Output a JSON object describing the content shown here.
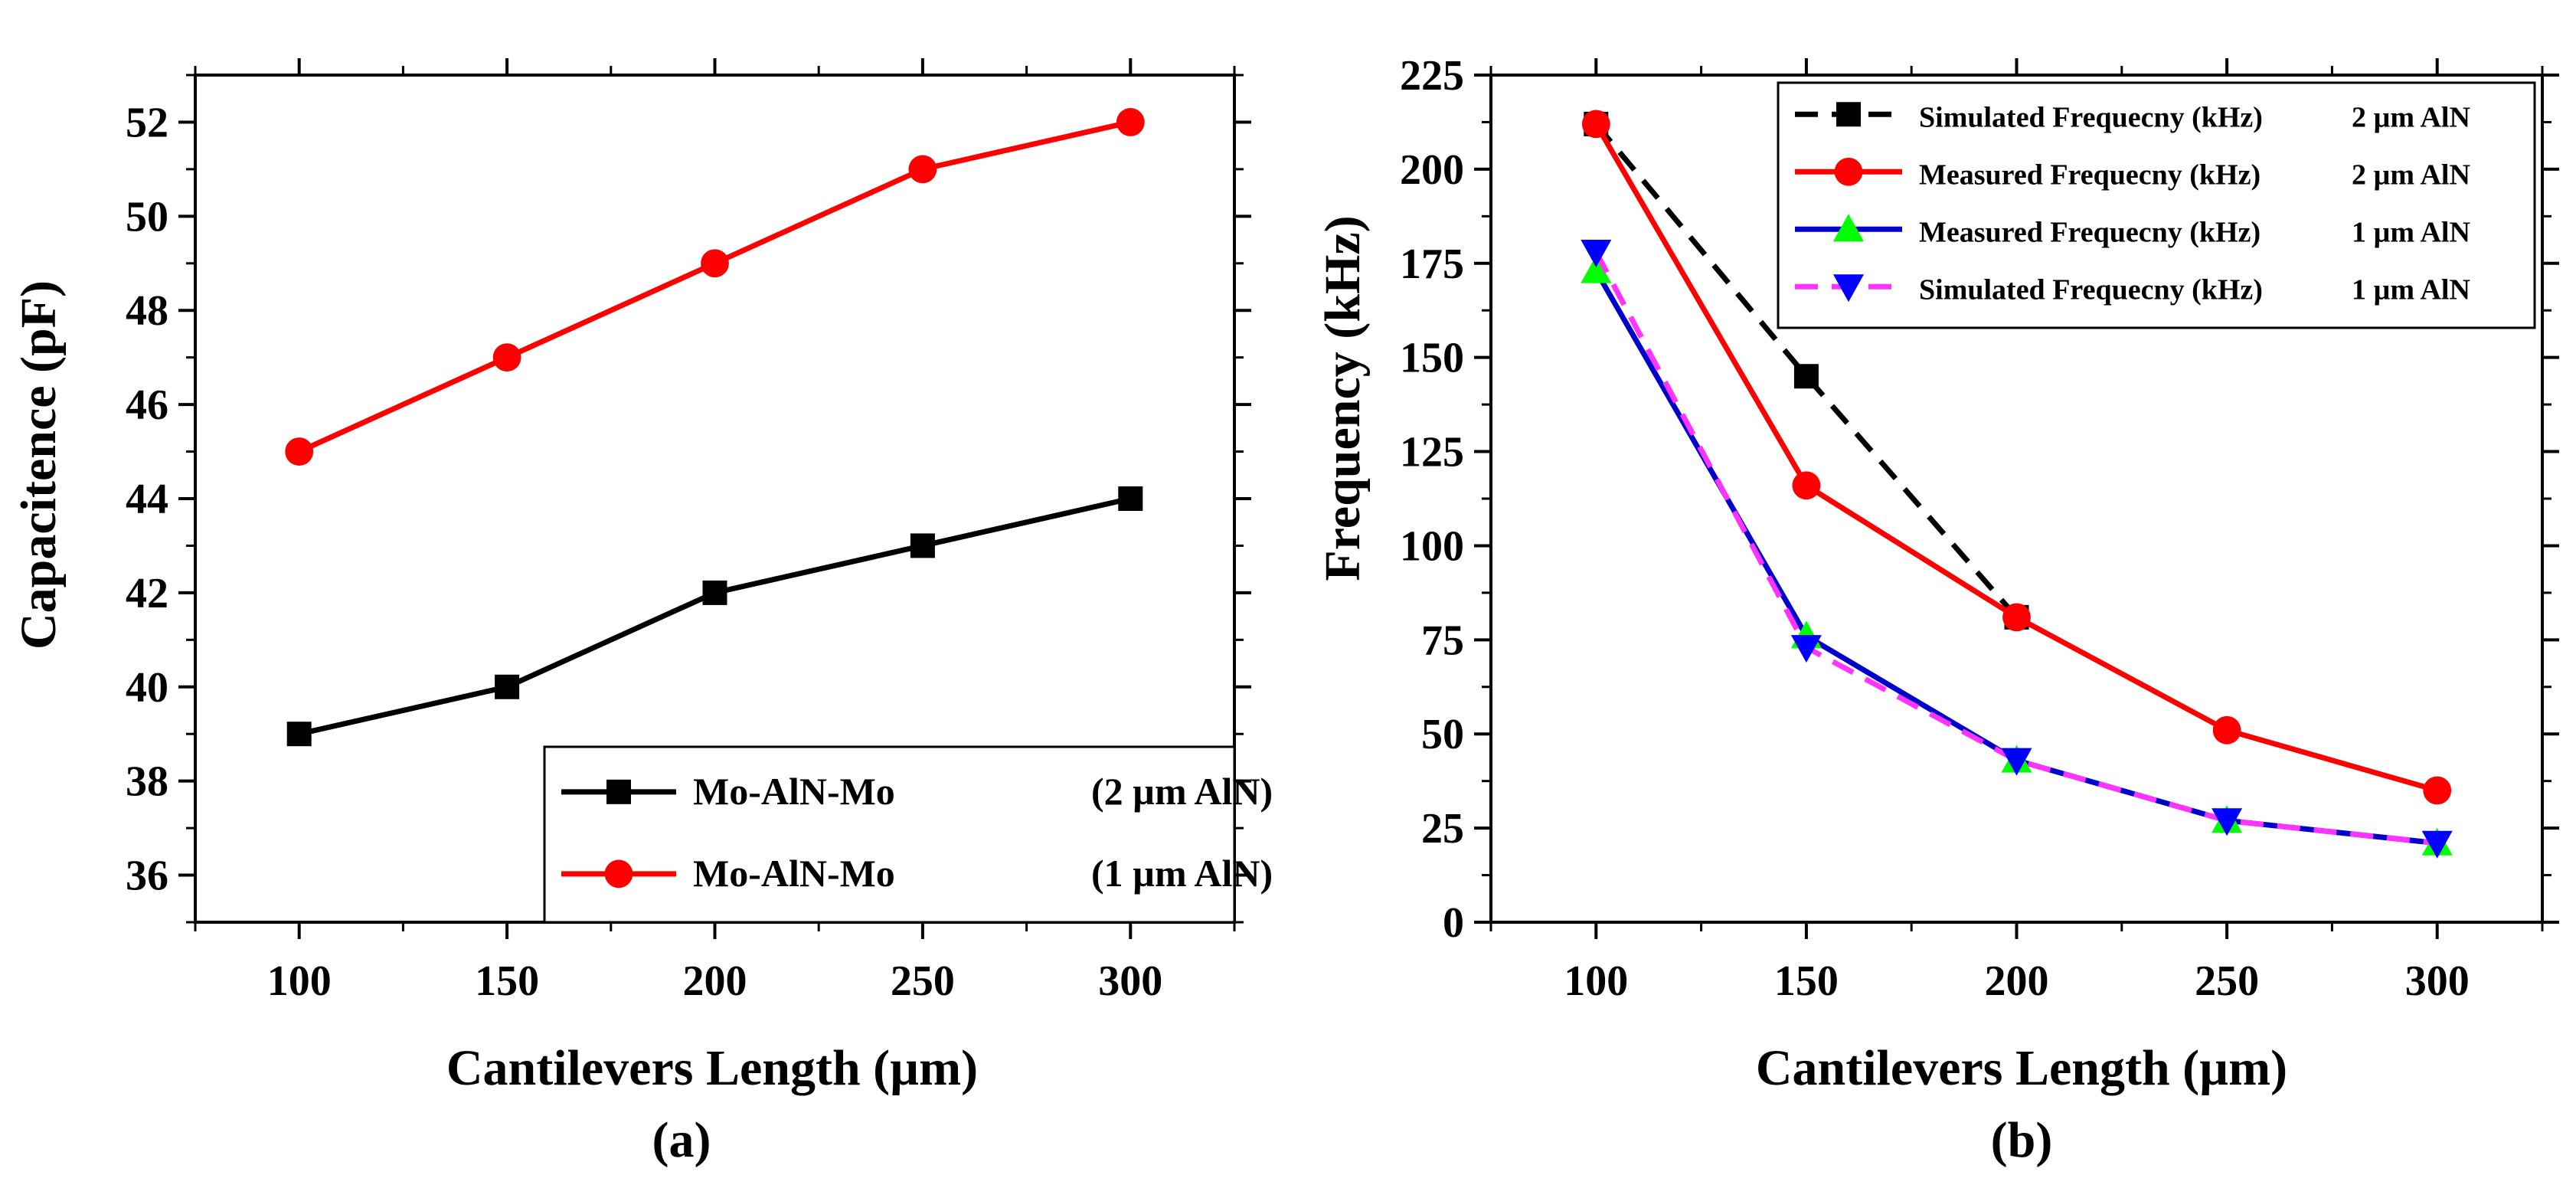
{
  "chart_data": [
    {
      "type": "line",
      "panel_label": "(a)",
      "xlabel": "Cantilevers Length (µm)",
      "ylabel": "Capacitence (pF)",
      "xlim": [
        75,
        325
      ],
      "ylim": [
        35,
        53
      ],
      "x_ticks": [
        100,
        150,
        200,
        250,
        300
      ],
      "y_ticks": [
        36,
        38,
        40,
        42,
        44,
        46,
        48,
        50,
        52
      ],
      "x_tick_labels": [
        "100",
        "150",
        "200",
        "250",
        "300"
      ],
      "y_tick_labels": [
        "36",
        "38",
        "40",
        "42",
        "44",
        "46",
        "48",
        "50",
        "52"
      ],
      "legend_position": "bottom-right",
      "series": [
        {
          "name": "Mo-AlN-Mo",
          "legend_note": "(2 µm AlN)",
          "color": "#000000",
          "marker": "square",
          "dash": "solid",
          "x": [
            100,
            150,
            200,
            250,
            300
          ],
          "values": [
            39,
            40,
            42,
            43,
            44
          ]
        },
        {
          "name": "Mo-AlN-Mo",
          "legend_note": "(1 µm AlN)",
          "color": "#ff0000",
          "marker": "circle",
          "dash": "solid",
          "x": [
            100,
            150,
            200,
            250,
            300
          ],
          "values": [
            45,
            47,
            49,
            51,
            52
          ]
        }
      ]
    },
    {
      "type": "line",
      "panel_label": "(b)",
      "xlabel": "Cantilevers Length (µm)",
      "ylabel": "Frequency (kHz)",
      "xlim": [
        75,
        325
      ],
      "ylim": [
        0,
        225
      ],
      "x_ticks": [
        100,
        150,
        200,
        250,
        300
      ],
      "y_ticks": [
        0,
        25,
        50,
        75,
        100,
        125,
        150,
        175,
        200,
        225
      ],
      "x_tick_labels": [
        "100",
        "150",
        "200",
        "250",
        "300"
      ],
      "y_tick_labels": [
        "0",
        "25",
        "50",
        "75",
        "100",
        "125",
        "150",
        "175",
        "200",
        "225"
      ],
      "legend_position": "top-right",
      "series": [
        {
          "name": "Simulated Frequecny (kHz)",
          "legend_note": "2 µm AlN",
          "color": "#000000",
          "marker": "square",
          "dash": "dashed",
          "x": [
            100,
            150,
            200
          ],
          "values": [
            212,
            145,
            81
          ]
        },
        {
          "name": "Measured Frequecny (kHz)",
          "legend_note": "2 µm AlN",
          "color": "#ff0000",
          "marker": "circle",
          "dash": "solid",
          "x": [
            100,
            150,
            200,
            250,
            300
          ],
          "values": [
            212,
            116,
            81,
            51,
            35
          ]
        },
        {
          "name": "Measured Frequecny (kHz)",
          "legend_note": "1 µm AlN",
          "color": "#0000cc",
          "marker_color": "#00ff00",
          "marker": "triangle-up",
          "dash": "solid",
          "x": [
            100,
            150,
            200,
            250,
            300
          ],
          "values": [
            173,
            76,
            43,
            27,
            21
          ]
        },
        {
          "name": "Simulated Frequecny (kHz)",
          "legend_note": "1 µm AlN",
          "color": "#ff33ff",
          "marker_color": "#0000ff",
          "marker": "triangle-down",
          "dash": "dashed",
          "x": [
            100,
            150,
            200,
            250,
            300
          ],
          "values": [
            178,
            73,
            43,
            27,
            21
          ]
        }
      ]
    }
  ]
}
